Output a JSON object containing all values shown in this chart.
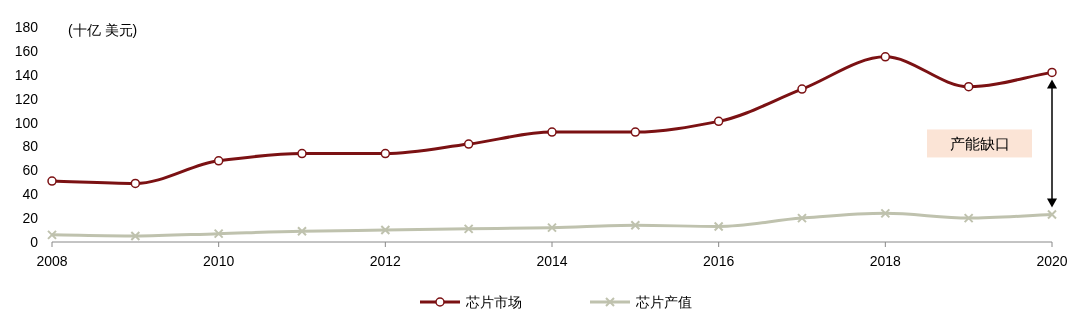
{
  "chart_data": {
    "type": "line",
    "ylabel": "(十亿 美元)",
    "x": [
      2008,
      2009,
      2010,
      2011,
      2012,
      2013,
      2014,
      2015,
      2016,
      2017,
      2018,
      2019,
      2020
    ],
    "series": [
      {
        "name": "芯片市场",
        "color": "#7b1113",
        "marker": "circle",
        "values": [
          51,
          49,
          68,
          74,
          74,
          82,
          92,
          92,
          101,
          128,
          155,
          130,
          142
        ]
      },
      {
        "name": "芯片产值",
        "color": "#bfc2ae",
        "marker": "cross",
        "values": [
          6,
          5,
          7,
          9,
          10,
          11,
          12,
          14,
          13,
          20,
          24,
          20,
          23
        ]
      }
    ],
    "xlim": [
      2008,
      2020
    ],
    "xticks": [
      2008,
      2010,
      2012,
      2014,
      2016,
      2018,
      2020
    ],
    "ylim": [
      0,
      180
    ],
    "yticks": [
      0,
      20,
      40,
      60,
      80,
      100,
      120,
      140,
      160,
      180
    ],
    "grid": false,
    "legend": "bottom",
    "annotations": [
      "产能缺口"
    ]
  }
}
